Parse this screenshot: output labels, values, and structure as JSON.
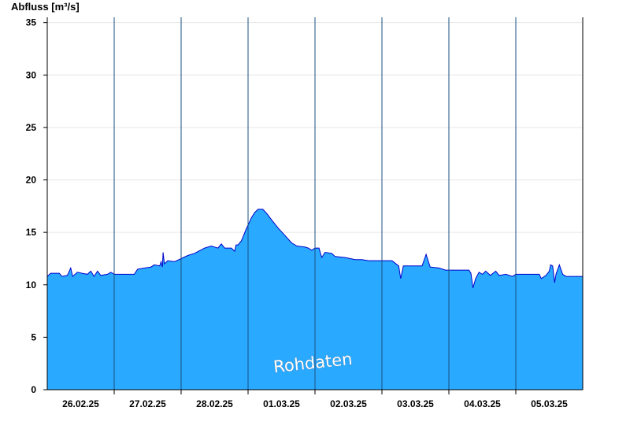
{
  "chart_data": {
    "type": "area",
    "title": "",
    "ylabel": "Abfluss [m³/s]",
    "xlabel": "",
    "ylim": [
      0,
      35.5
    ],
    "yticks": [
      0,
      5,
      10,
      15,
      20,
      25,
      30,
      35
    ],
    "grid": true,
    "days": [
      "26.02.25",
      "27.02.25",
      "28.02.25",
      "01.03.25",
      "02.03.25",
      "03.03.25",
      "04.03.25",
      "05.03.25"
    ],
    "watermark": "Rohdaten",
    "colors": {
      "fill": "#29a9ff",
      "line": "#0000cc",
      "grid": "#e6e6e6",
      "axis": "#000000",
      "day_separator": "#1a4f80"
    },
    "series": [
      {
        "values": [
          [
            0,
            10.8
          ],
          [
            0.05,
            11.1
          ],
          [
            0.18,
            11.1
          ],
          [
            0.22,
            10.8
          ],
          [
            0.3,
            10.9
          ],
          [
            0.35,
            11.6
          ],
          [
            0.38,
            10.8
          ],
          [
            0.45,
            11.2
          ],
          [
            0.52,
            11.1
          ],
          [
            0.6,
            11.0
          ],
          [
            0.65,
            11.3
          ],
          [
            0.7,
            10.8
          ],
          [
            0.75,
            11.3
          ],
          [
            0.8,
            10.9
          ],
          [
            0.9,
            11.0
          ],
          [
            0.95,
            11.2
          ],
          [
            1.0,
            11.0
          ],
          [
            1.3,
            11.0
          ],
          [
            1.35,
            11.5
          ],
          [
            1.55,
            11.7
          ],
          [
            1.6,
            11.9
          ],
          [
            1.68,
            11.8
          ],
          [
            1.7,
            12.2
          ],
          [
            1.72,
            11.7
          ],
          [
            1.73,
            13.1
          ],
          [
            1.75,
            12.0
          ],
          [
            1.8,
            12.3
          ],
          [
            1.9,
            12.2
          ],
          [
            2.0,
            12.5
          ],
          [
            2.1,
            12.8
          ],
          [
            2.2,
            13.0
          ],
          [
            2.35,
            13.5
          ],
          [
            2.45,
            13.7
          ],
          [
            2.55,
            13.5
          ],
          [
            2.6,
            13.9
          ],
          [
            2.65,
            13.5
          ],
          [
            2.75,
            13.5
          ],
          [
            2.8,
            13.2
          ],
          [
            2.82,
            13.8
          ],
          [
            2.85,
            13.8
          ],
          [
            2.9,
            14.2
          ],
          [
            2.94,
            14.8
          ],
          [
            2.97,
            15.3
          ],
          [
            3.0,
            15.7
          ],
          [
            3.05,
            16.4
          ],
          [
            3.1,
            16.9
          ],
          [
            3.15,
            17.2
          ],
          [
            3.22,
            17.2
          ],
          [
            3.28,
            16.8
          ],
          [
            3.35,
            16.2
          ],
          [
            3.45,
            15.4
          ],
          [
            3.55,
            14.7
          ],
          [
            3.65,
            14.0
          ],
          [
            3.73,
            13.7
          ],
          [
            3.85,
            13.6
          ],
          [
            3.9,
            13.5
          ],
          [
            3.95,
            13.3
          ],
          [
            4.0,
            13.5
          ],
          [
            4.06,
            13.5
          ],
          [
            4.1,
            12.6
          ],
          [
            4.15,
            13.1
          ],
          [
            4.25,
            13.0
          ],
          [
            4.3,
            12.7
          ],
          [
            4.45,
            12.6
          ],
          [
            4.6,
            12.4
          ],
          [
            4.7,
            12.4
          ],
          [
            4.8,
            12.3
          ],
          [
            5.15,
            12.3
          ],
          [
            5.25,
            11.8
          ],
          [
            5.28,
            10.6
          ],
          [
            5.32,
            11.8
          ],
          [
            5.6,
            11.8
          ],
          [
            5.66,
            12.9
          ],
          [
            5.72,
            11.7
          ],
          [
            5.85,
            11.6
          ],
          [
            5.95,
            11.4
          ],
          [
            6.3,
            11.4
          ],
          [
            6.33,
            11.1
          ],
          [
            6.36,
            9.7
          ],
          [
            6.4,
            10.6
          ],
          [
            6.45,
            11.2
          ],
          [
            6.5,
            11.0
          ],
          [
            6.55,
            11.3
          ],
          [
            6.62,
            10.9
          ],
          [
            6.7,
            11.3
          ],
          [
            6.75,
            10.9
          ],
          [
            6.85,
            11.0
          ],
          [
            6.95,
            10.8
          ],
          [
            7.0,
            11.0
          ],
          [
            7.35,
            11.0
          ],
          [
            7.38,
            10.6
          ],
          [
            7.45,
            10.9
          ],
          [
            7.5,
            11.3
          ],
          [
            7.52,
            11.9
          ],
          [
            7.55,
            11.8
          ],
          [
            7.58,
            10.2
          ],
          [
            7.6,
            11.0
          ],
          [
            7.65,
            11.9
          ],
          [
            7.7,
            11.0
          ],
          [
            7.75,
            10.8
          ],
          [
            8.0,
            10.8
          ]
        ]
      }
    ]
  }
}
